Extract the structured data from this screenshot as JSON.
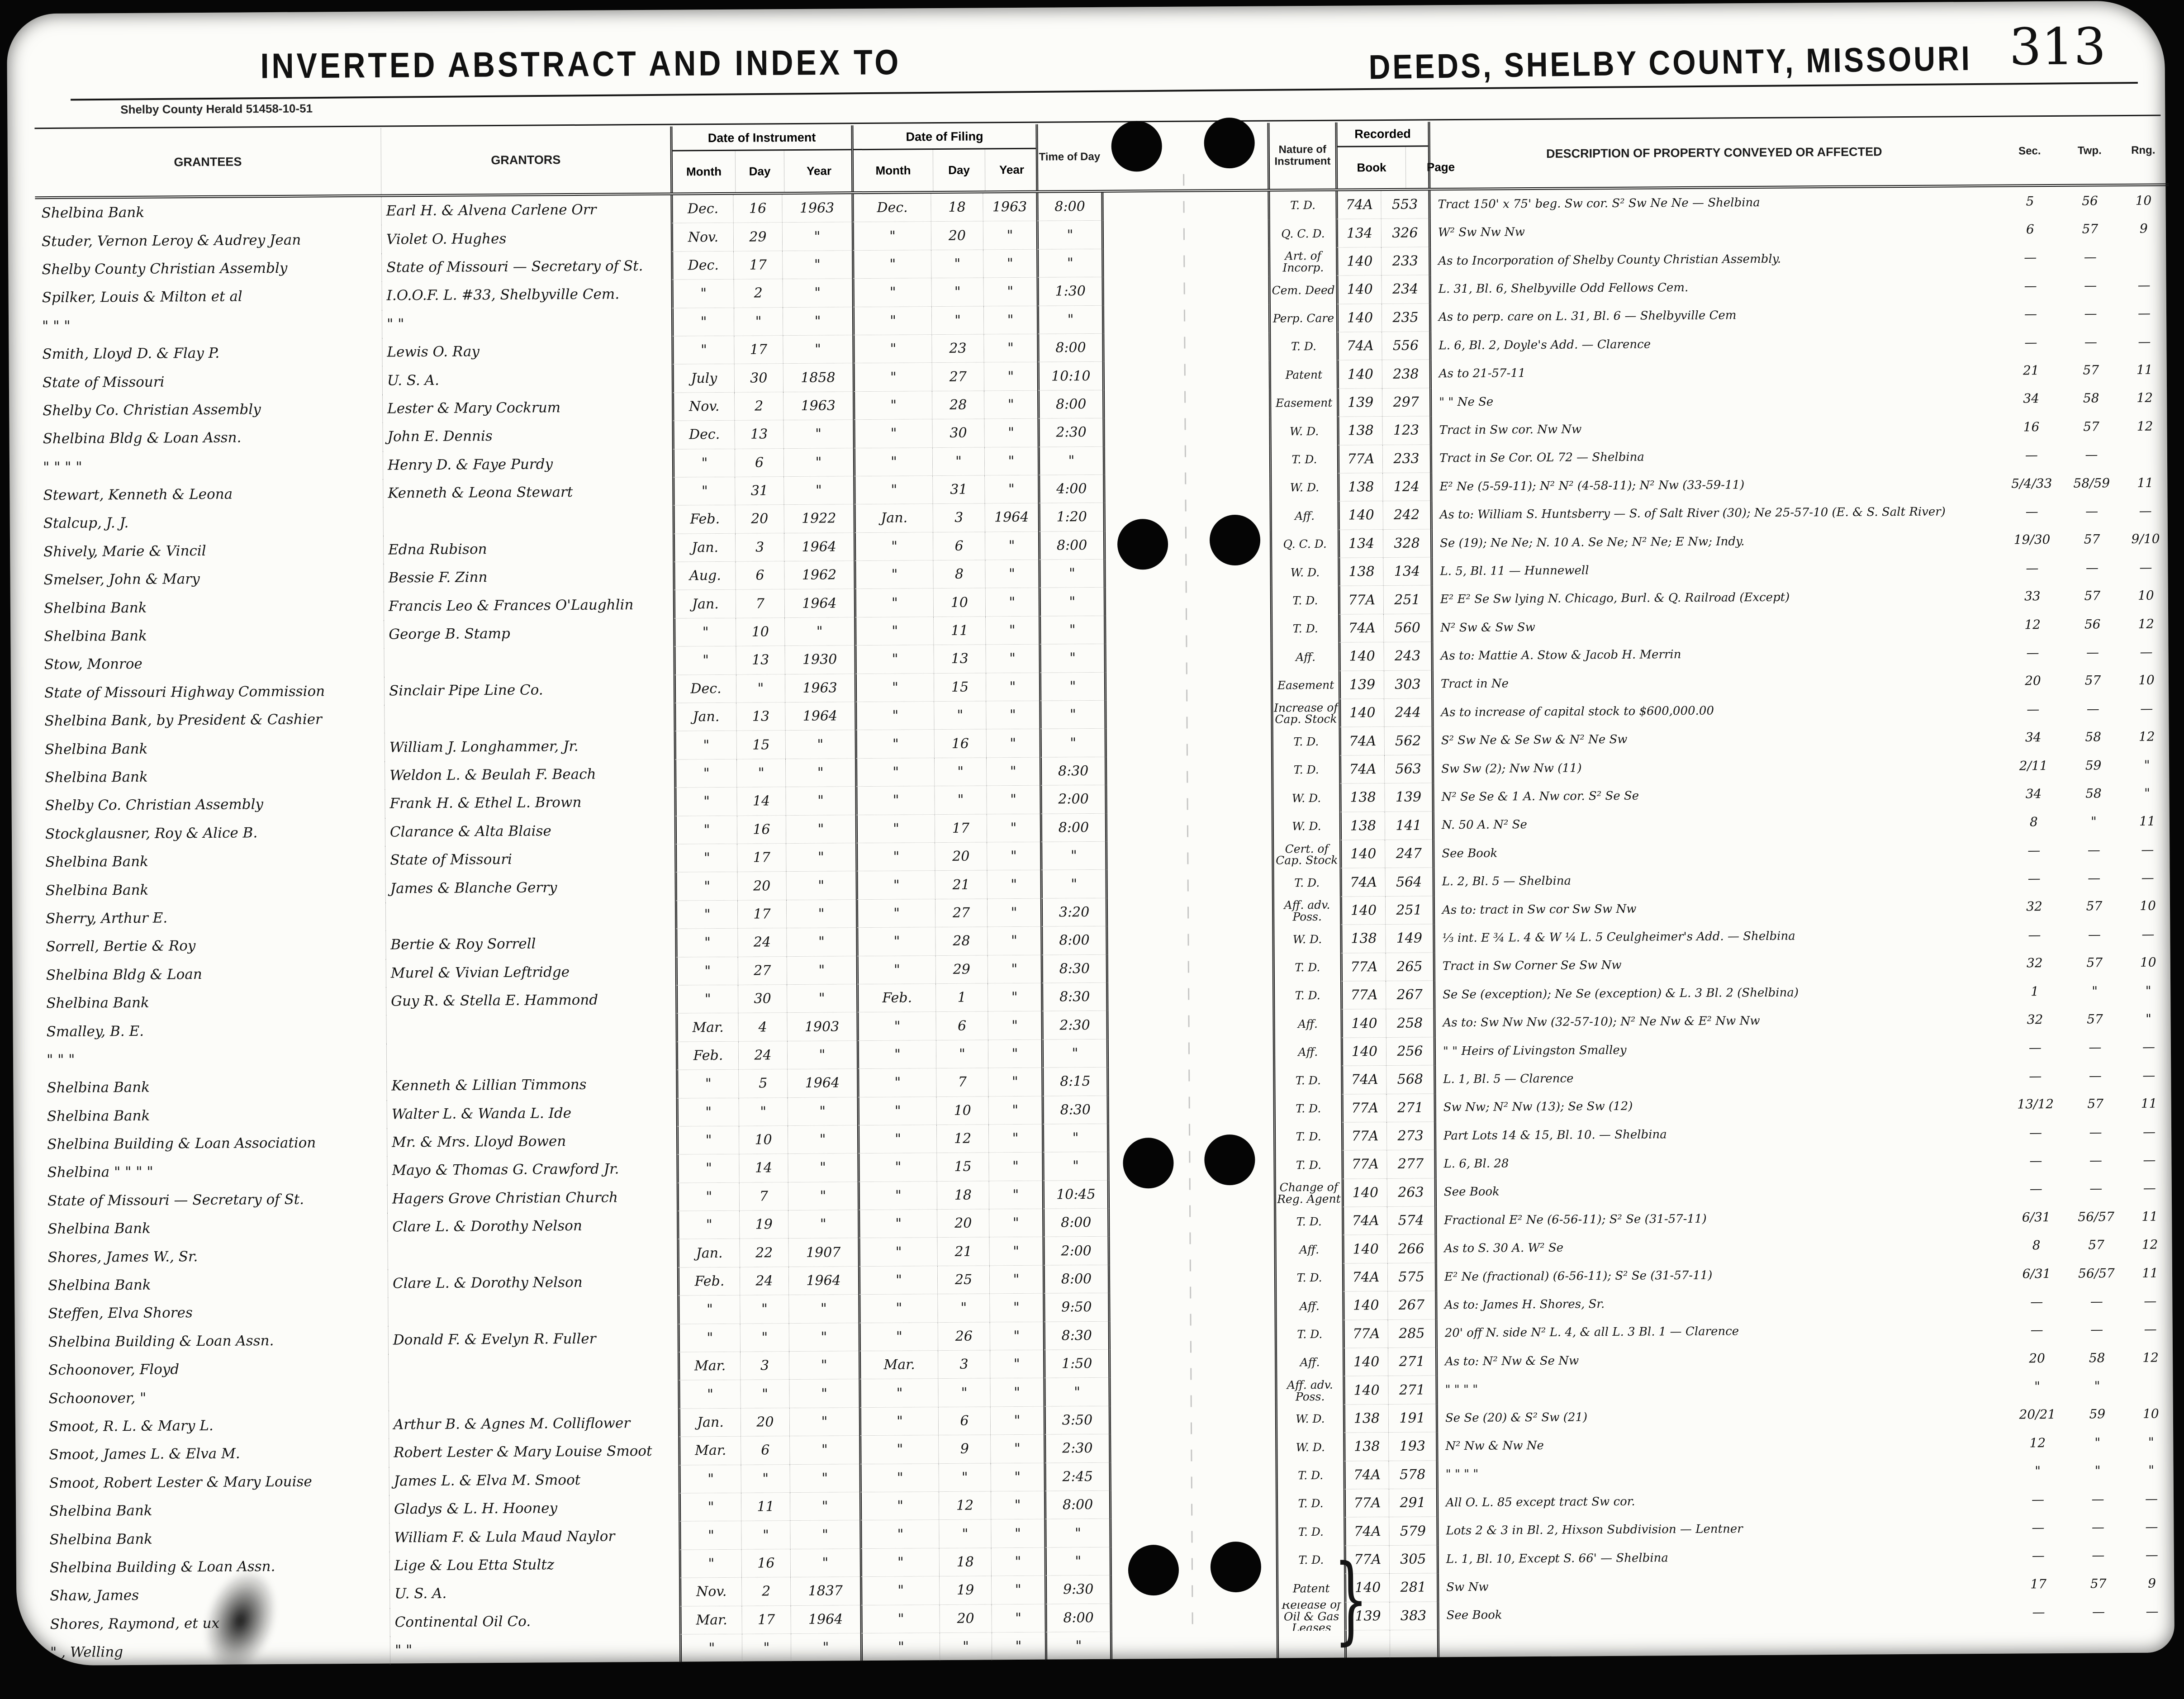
{
  "page": {
    "left_title": "INVERTED ABSTRACT AND INDEX TO",
    "right_title": "DEEDS, SHELBY COUNTY, MISSOURI",
    "page_number": "313",
    "imprint": "Shelby County Herald   51458-10-51"
  },
  "headers": {
    "grantees": "GRANTEES",
    "grantors": "GRANTORS",
    "date_of_instrument": "Date of Instrument",
    "date_of_filing": "Date of Filing",
    "month": "Month",
    "day": "Day",
    "year": "Year",
    "time_of_day": "Time of Day",
    "nature": "Nature of Instrument",
    "recorded": "Recorded",
    "book": "Book",
    "page": "Page",
    "description": "DESCRIPTION OF PROPERTY CONVEYED OR AFFECTED",
    "sec": "Sec.",
    "twp": "Twp.",
    "rng": "Rng."
  },
  "rows": [
    {
      "g": "Shelbina Bank",
      "r": "Earl H. & Alvena Carlene Orr",
      "m1": "Dec.",
      "d1": "16",
      "y1": "1963",
      "m2": "Dec.",
      "d2": "18",
      "y2": "1963",
      "t": "8:00",
      "n": "T. D.",
      "b": "74A",
      "p": "553",
      "de": "Tract 150' x 75' beg. Sw cor. S² Sw Ne Ne — Shelbina",
      "s": "5",
      "tp": "56",
      "rg": "10"
    },
    {
      "g": "Studer, Vernon Leroy & Audrey Jean",
      "r": "Violet O. Hughes",
      "m1": "Nov.",
      "d1": "29",
      "y1": "\"",
      "m2": "\"",
      "d2": "20",
      "y2": "\"",
      "t": "\"",
      "n": "Q. C. D.",
      "b": "134",
      "p": "326",
      "de": "W² Sw Nw Nw",
      "s": "6",
      "tp": "57",
      "rg": "9"
    },
    {
      "g": "Shelby County Christian Assembly",
      "r": "State of Missouri — Secretary of St.",
      "m1": "Dec.",
      "d1": "17",
      "y1": "\"",
      "m2": "\"",
      "d2": "\"",
      "y2": "\"",
      "t": "\"",
      "n": "Art. of Incorp.",
      "b": "140",
      "p": "233",
      "de": "As to Incorporation of Shelby County Christian Assembly.",
      "s": "—",
      "tp": "—",
      "rg": ""
    },
    {
      "g": "Spilker, Louis & Milton et al",
      "r": "I.O.O.F. L. #33, Shelbyville Cem.",
      "m1": "\"",
      "d1": "2",
      "y1": "\"",
      "m2": "\"",
      "d2": "\"",
      "y2": "\"",
      "t": "1:30",
      "n": "Cem. Deed",
      "b": "140",
      "p": "234",
      "de": "L. 31, Bl. 6, Shelbyville Odd Fellows Cem.",
      "s": "—",
      "tp": "—",
      "rg": "—"
    },
    {
      "g": "\"      \"      \"",
      "r": "\"      \"",
      "m1": "\"",
      "d1": "\"",
      "y1": "\"",
      "m2": "\"",
      "d2": "\"",
      "y2": "\"",
      "t": "\"",
      "n": "Perp. Care",
      "b": "140",
      "p": "235",
      "de": "As to perp. care on L. 31, Bl. 6 — Shelbyville Cem",
      "s": "—",
      "tp": "—",
      "rg": "—"
    },
    {
      "g": "Smith, Lloyd D. & Flay P.",
      "r": "Lewis O. Ray",
      "m1": "\"",
      "d1": "17",
      "y1": "\"",
      "m2": "\"",
      "d2": "23",
      "y2": "\"",
      "t": "8:00",
      "n": "T. D.",
      "b": "74A",
      "p": "556",
      "de": "L. 6, Bl. 2, Doyle's Add. — Clarence",
      "s": "—",
      "tp": "—",
      "rg": "—"
    },
    {
      "g": "State of Missouri",
      "r": "U. S. A.",
      "m1": "July",
      "d1": "30",
      "y1": "1858",
      "m2": "\"",
      "d2": "27",
      "y2": "\"",
      "t": "10:10",
      "n": "Patent",
      "b": "140",
      "p": "238",
      "de": "As to 21-57-11",
      "s": "21",
      "tp": "57",
      "rg": "11"
    },
    {
      "g": "Shelby Co. Christian Assembly",
      "r": "Lester & Mary Cockrum",
      "m1": "Nov.",
      "d1": "2",
      "y1": "1963",
      "m2": "\"",
      "d2": "28",
      "y2": "\"",
      "t": "8:00",
      "n": "Easement",
      "b": "139",
      "p": "297",
      "de": "\"   \"   Ne Se",
      "s": "34",
      "tp": "58",
      "rg": "12"
    },
    {
      "g": "Shelbina Bldg & Loan Assn.",
      "r": "John E. Dennis",
      "m1": "Dec.",
      "d1": "13",
      "y1": "\"",
      "m2": "\"",
      "d2": "30",
      "y2": "\"",
      "t": "2:30",
      "n": "W. D.",
      "b": "138",
      "p": "123",
      "de": "Tract in Sw cor. Nw Nw",
      "s": "16",
      "tp": "57",
      "rg": "12"
    },
    {
      "g": "\"      \"      \"      \"",
      "r": "Henry D. & Faye Purdy",
      "m1": "\"",
      "d1": "6",
      "y1": "\"",
      "m2": "\"",
      "d2": "\"",
      "y2": "\"",
      "t": "\"",
      "n": "T. D.",
      "b": "77A",
      "p": "233",
      "de": "Tract in Se Cor. OL 72 —   Shelbina",
      "s": "—",
      "tp": "—",
      "rg": ""
    },
    {
      "g": "Stewart, Kenneth & Leona",
      "r": "Kenneth & Leona Stewart",
      "m1": "\"",
      "d1": "31",
      "y1": "\"",
      "m2": "\"",
      "d2": "31",
      "y2": "\"",
      "t": "4:00",
      "n": "W. D.",
      "b": "138",
      "p": "124",
      "de": "E² Ne (5-59-11); N² N² (4-58-11); N² Nw (33-59-11)",
      "s": "5/4/33",
      "tp": "58/59",
      "rg": "11"
    },
    {
      "g": "Stalcup, J. J.",
      "r": "",
      "m1": "Feb.",
      "d1": "20",
      "y1": "1922",
      "m2": "Jan.",
      "d2": "3",
      "y2": "1964",
      "t": "1:20",
      "n": "Aff.",
      "b": "140",
      "p": "242",
      "de": "As to: William S. Huntsberry — S. of Salt River (30); Ne 25-57-10 (E. & S. Salt River)",
      "s": "—",
      "tp": "—",
      "rg": "—"
    },
    {
      "g": "Shively, Marie & Vincil",
      "r": "Edna Rubison",
      "m1": "Jan.",
      "d1": "3",
      "y1": "1964",
      "m2": "\"",
      "d2": "6",
      "y2": "\"",
      "t": "8:00",
      "n": "Q. C. D.",
      "b": "134",
      "p": "328",
      "de": "Se (19); Ne Ne; N. 10 A. Se Ne; N² Ne; E Nw; Indy.",
      "s": "19/30",
      "tp": "57",
      "rg": "9/10"
    },
    {
      "g": "Smelser, John & Mary",
      "r": "Bessie F. Zinn",
      "m1": "Aug.",
      "d1": "6",
      "y1": "1962",
      "m2": "\"",
      "d2": "8",
      "y2": "\"",
      "t": "\"",
      "n": "W. D.",
      "b": "138",
      "p": "134",
      "de": "L. 5, Bl. 11 —   Hunnewell",
      "s": "—",
      "tp": "—",
      "rg": "—"
    },
    {
      "g": "Shelbina Bank",
      "r": "Francis Leo & Frances O'Laughlin",
      "m1": "Jan.",
      "d1": "7",
      "y1": "1964",
      "m2": "\"",
      "d2": "10",
      "y2": "\"",
      "t": "\"",
      "n": "T. D.",
      "b": "77A",
      "p": "251",
      "de": "E² E² Se Sw lying N. Chicago, Burl. & Q. Railroad (Except)",
      "s": "33",
      "tp": "57",
      "rg": "10"
    },
    {
      "g": "Shelbina Bank",
      "r": "George B. Stamp",
      "m1": "\"",
      "d1": "10",
      "y1": "\"",
      "m2": "\"",
      "d2": "11",
      "y2": "\"",
      "t": "\"",
      "n": "T. D.",
      "b": "74A",
      "p": "560",
      "de": "N² Sw & Sw Sw",
      "s": "12",
      "tp": "56",
      "rg": "12"
    },
    {
      "g": "Stow, Monroe",
      "r": "",
      "m1": "\"",
      "d1": "13",
      "y1": "1930",
      "m2": "\"",
      "d2": "13",
      "y2": "\"",
      "t": "\"",
      "n": "Aff.",
      "b": "140",
      "p": "243",
      "de": "As to: Mattie A. Stow & Jacob H. Merrin",
      "s": "—",
      "tp": "—",
      "rg": "—"
    },
    {
      "g": "State of Missouri Highway Commission",
      "r": "Sinclair Pipe Line Co.",
      "m1": "Dec.",
      "d1": "\"",
      "y1": "1963",
      "m2": "\"",
      "d2": "15",
      "y2": "\"",
      "t": "\"",
      "n": "Easement",
      "b": "139",
      "p": "303",
      "de": "Tract in Ne",
      "s": "20",
      "tp": "57",
      "rg": "10"
    },
    {
      "g": "Shelbina Bank, by President & Cashier",
      "r": "",
      "m1": "Jan.",
      "d1": "13",
      "y1": "1964",
      "m2": "\"",
      "d2": "\"",
      "y2": "\"",
      "t": "\"",
      "n": "Increase of Cap. Stock",
      "b": "140",
      "p": "244",
      "de": "As to increase of capital stock to $600,000.00",
      "s": "—",
      "tp": "—",
      "rg": "—"
    },
    {
      "g": "Shelbina Bank",
      "r": "William J. Longhammer, Jr.",
      "m1": "\"",
      "d1": "15",
      "y1": "\"",
      "m2": "\"",
      "d2": "16",
      "y2": "\"",
      "t": "\"",
      "n": "T. D.",
      "b": "74A",
      "p": "562",
      "de": "S² Sw Ne & Se Sw & N² Ne Sw",
      "s": "34",
      "tp": "58",
      "rg": "12"
    },
    {
      "g": "Shelbina Bank",
      "r": "Weldon L. & Beulah F. Beach",
      "m1": "\"",
      "d1": "\"",
      "y1": "\"",
      "m2": "\"",
      "d2": "\"",
      "y2": "\"",
      "t": "8:30",
      "n": "T. D.",
      "b": "74A",
      "p": "563",
      "de": "Sw Sw (2); Nw Nw (11)",
      "s": "2/11",
      "tp": "59",
      "rg": "\""
    },
    {
      "g": "Shelby Co. Christian Assembly",
      "r": "Frank H. & Ethel L. Brown",
      "m1": "\"",
      "d1": "14",
      "y1": "\"",
      "m2": "\"",
      "d2": "\"",
      "y2": "\"",
      "t": "2:00",
      "n": "W. D.",
      "b": "138",
      "p": "139",
      "de": "N² Se Se & 1 A. Nw cor. S² Se Se",
      "s": "34",
      "tp": "58",
      "rg": "\""
    },
    {
      "g": "Stockglausner, Roy & Alice B.",
      "r": "Clarance & Alta Blaise",
      "m1": "\"",
      "d1": "16",
      "y1": "\"",
      "m2": "\"",
      "d2": "17",
      "y2": "\"",
      "t": "8:00",
      "n": "W. D.",
      "b": "138",
      "p": "141",
      "de": "N. 50 A. N² Se",
      "s": "8",
      "tp": "\"",
      "rg": "11"
    },
    {
      "g": "Shelbina Bank",
      "r": "State of Missouri",
      "m1": "\"",
      "d1": "17",
      "y1": "\"",
      "m2": "\"",
      "d2": "20",
      "y2": "\"",
      "t": "\"",
      "n": "Cert. of Cap. Stock",
      "b": "140",
      "p": "247",
      "de": "See Book",
      "s": "—",
      "tp": "—",
      "rg": "—"
    },
    {
      "g": "Shelbina Bank",
      "r": "James & Blanche Gerry",
      "m1": "\"",
      "d1": "20",
      "y1": "\"",
      "m2": "\"",
      "d2": "21",
      "y2": "\"",
      "t": "\"",
      "n": "T. D.",
      "b": "74A",
      "p": "564",
      "de": "L. 2, Bl. 5 —   Shelbina",
      "s": "—",
      "tp": "—",
      "rg": "—"
    },
    {
      "g": "Sherry, Arthur E.",
      "r": "",
      "m1": "\"",
      "d1": "17",
      "y1": "\"",
      "m2": "\"",
      "d2": "27",
      "y2": "\"",
      "t": "3:20",
      "n": "Aff. adv. Poss.",
      "b": "140",
      "p": "251",
      "de": "As to: tract in Sw cor Sw Sw Nw",
      "s": "32",
      "tp": "57",
      "rg": "10"
    },
    {
      "g": "Sorrell, Bertie & Roy",
      "r": "Bertie & Roy Sorrell",
      "m1": "\"",
      "d1": "24",
      "y1": "\"",
      "m2": "\"",
      "d2": "28",
      "y2": "\"",
      "t": "8:00",
      "n": "W. D.",
      "b": "138",
      "p": "149",
      "de": "⅓ int. E ¾ L. 4 & W ¼ L. 5 Ceulgheimer's Add. — Shelbina",
      "s": "—",
      "tp": "—",
      "rg": "—"
    },
    {
      "g": "Shelbina Bldg & Loan",
      "r": "Murel & Vivian Leftridge",
      "m1": "\"",
      "d1": "27",
      "y1": "\"",
      "m2": "\"",
      "d2": "29",
      "y2": "\"",
      "t": "8:30",
      "n": "T. D.",
      "b": "77A",
      "p": "265",
      "de": "Tract in Sw Corner Se Sw Nw",
      "s": "32",
      "tp": "57",
      "rg": "10"
    },
    {
      "g": "Shelbina Bank",
      "r": "Guy R. & Stella E. Hammond",
      "m1": "\"",
      "d1": "30",
      "y1": "\"",
      "m2": "Feb.",
      "d2": "1",
      "y2": "\"",
      "t": "8:30",
      "n": "T. D.",
      "b": "77A",
      "p": "267",
      "de": "Se Se (exception); Ne Se (exception) & L. 3 Bl. 2 (Shelbina)",
      "s": "1",
      "tp": "\"",
      "rg": "\""
    },
    {
      "g": "Smalley, B. E.",
      "r": "",
      "m1": "Mar.",
      "d1": "4",
      "y1": "1903",
      "m2": "\"",
      "d2": "6",
      "y2": "\"",
      "t": "2:30",
      "n": "Aff.",
      "b": "140",
      "p": "258",
      "de": "As to: Sw Nw Nw (32-57-10); N² Ne Nw & E² Nw Nw",
      "s": "32",
      "tp": "57",
      "rg": "\""
    },
    {
      "g": "\"      \"      \"",
      "r": "",
      "m1": "Feb.",
      "d1": "24",
      "y1": "\"",
      "m2": "\"",
      "d2": "\"",
      "y2": "\"",
      "t": "\"",
      "n": "Aff.",
      "b": "140",
      "p": "256",
      "de": "\"   \"   Heirs of Livingston Smalley",
      "s": "—",
      "tp": "—",
      "rg": "—"
    },
    {
      "g": "Shelbina Bank",
      "r": "Kenneth & Lillian Timmons",
      "m1": "\"",
      "d1": "5",
      "y1": "1964",
      "m2": "\"",
      "d2": "7",
      "y2": "\"",
      "t": "8:15",
      "n": "T. D.",
      "b": "74A",
      "p": "568",
      "de": "L. 1, Bl. 5  —   Clarence",
      "s": "—",
      "tp": "—",
      "rg": "—"
    },
    {
      "g": "Shelbina Bank",
      "r": "Walter L. & Wanda L. Ide",
      "m1": "\"",
      "d1": "\"",
      "y1": "\"",
      "m2": "\"",
      "d2": "10",
      "y2": "\"",
      "t": "8:30",
      "n": "T. D.",
      "b": "77A",
      "p": "271",
      "de": "Sw Nw; N² Nw (13); Se Sw (12)",
      "s": "13/12",
      "tp": "57",
      "rg": "11"
    },
    {
      "g": "Shelbina Building & Loan Association",
      "r": "Mr. & Mrs. Lloyd Bowen",
      "m1": "\"",
      "d1": "10",
      "y1": "\"",
      "m2": "\"",
      "d2": "12",
      "y2": "\"",
      "t": "\"",
      "n": "T. D.",
      "b": "77A",
      "p": "273",
      "de": "Part Lots 14 & 15, Bl. 10. —   Shelbina",
      "s": "—",
      "tp": "—",
      "rg": "—"
    },
    {
      "g": "Shelbina   \"   \"   \"   \"",
      "r": "Mayo & Thomas G. Crawford Jr.",
      "m1": "\"",
      "d1": "14",
      "y1": "\"",
      "m2": "\"",
      "d2": "15",
      "y2": "\"",
      "t": "\"",
      "n": "T. D.",
      "b": "77A",
      "p": "277",
      "de": "L. 6, Bl. 28",
      "s": "—",
      "tp": "—",
      "rg": "—"
    },
    {
      "g": "State of Missouri — Secretary of St.",
      "r": "Hagers Grove Christian Church",
      "m1": "\"",
      "d1": "7",
      "y1": "\"",
      "m2": "\"",
      "d2": "18",
      "y2": "\"",
      "t": "10:45",
      "n": "Change of Reg. Agent",
      "b": "140",
      "p": "263",
      "de": "See Book",
      "s": "—",
      "tp": "—",
      "rg": "—"
    },
    {
      "g": "Shelbina Bank",
      "r": "Clare L. & Dorothy Nelson",
      "m1": "\"",
      "d1": "19",
      "y1": "\"",
      "m2": "\"",
      "d2": "20",
      "y2": "\"",
      "t": "8:00",
      "n": "T. D.",
      "b": "74A",
      "p": "574",
      "de": "Fractional E² Ne (6-56-11); S² Se (31-57-11)",
      "s": "6/31",
      "tp": "56/57",
      "rg": "11"
    },
    {
      "g": "Shores, James W., Sr.",
      "r": "",
      "m1": "Jan.",
      "d1": "22",
      "y1": "1907",
      "m2": "\"",
      "d2": "21",
      "y2": "\"",
      "t": "2:00",
      "n": "Aff.",
      "b": "140",
      "p": "266",
      "de": "As to S. 30 A. W² Se",
      "s": "8",
      "tp": "57",
      "rg": "12"
    },
    {
      "g": "Shelbina Bank",
      "r": "Clare L. & Dorothy Nelson",
      "m1": "Feb.",
      "d1": "24",
      "y1": "1964",
      "m2": "\"",
      "d2": "25",
      "y2": "\"",
      "t": "8:00",
      "n": "T. D.",
      "b": "74A",
      "p": "575",
      "de": "E² Ne (fractional) (6-56-11); S² Se (31-57-11)",
      "s": "6/31",
      "tp": "56/57",
      "rg": "11"
    },
    {
      "g": "Steffen, Elva Shores",
      "r": "",
      "m1": "\"",
      "d1": "\"",
      "y1": "\"",
      "m2": "\"",
      "d2": "\"",
      "y2": "\"",
      "t": "9:50",
      "n": "Aff.",
      "b": "140",
      "p": "267",
      "de": "As to: James H. Shores, Sr.",
      "s": "—",
      "tp": "—",
      "rg": "—"
    },
    {
      "g": "Shelbina Building & Loan Assn.",
      "r": "Donald F. & Evelyn R. Fuller",
      "m1": "\"",
      "d1": "\"",
      "y1": "\"",
      "m2": "\"",
      "d2": "26",
      "y2": "\"",
      "t": "8:30",
      "n": "T. D.",
      "b": "77A",
      "p": "285",
      "de": "20' off N. side N² L. 4, & all L. 3 Bl. 1 — Clarence",
      "s": "—",
      "tp": "—",
      "rg": "—"
    },
    {
      "g": "Schoonover, Floyd",
      "r": "",
      "m1": "Mar.",
      "d1": "3",
      "y1": "\"",
      "m2": "Mar.",
      "d2": "3",
      "y2": "\"",
      "t": "1:50",
      "n": "Aff.",
      "b": "140",
      "p": "271",
      "de": "As to: N² Nw & Se Nw",
      "s": "20",
      "tp": "58",
      "rg": "12"
    },
    {
      "g": "Schoonover,   \"",
      "r": "",
      "m1": "\"",
      "d1": "\"",
      "y1": "\"",
      "m2": "\"",
      "d2": "\"",
      "y2": "\"",
      "t": "\"",
      "n": "Aff. adv. Poss.",
      "b": "140",
      "p": "271",
      "de": "\"   \"   \"   \"",
      "s": "\"",
      "tp": "\"",
      "rg": ""
    },
    {
      "g": "Smoot, R. L. & Mary L.",
      "r": "Arthur B. & Agnes M. Colliflower",
      "m1": "Jan.",
      "d1": "20",
      "y1": "\"",
      "m2": "\"",
      "d2": "6",
      "y2": "\"",
      "t": "3:50",
      "n": "W. D.",
      "b": "138",
      "p": "191",
      "de": "Se Se (20) & S² Sw (21)",
      "s": "20/21",
      "tp": "59",
      "rg": "10"
    },
    {
      "g": "Smoot, James L. & Elva M.",
      "r": "Robert Lester & Mary Louise Smoot",
      "m1": "Mar.",
      "d1": "6",
      "y1": "\"",
      "m2": "\"",
      "d2": "9",
      "y2": "\"",
      "t": "2:30",
      "n": "W. D.",
      "b": "138",
      "p": "193",
      "de": "N² Nw & Nw Ne",
      "s": "12",
      "tp": "\"",
      "rg": "\""
    },
    {
      "g": "Smoot, Robert Lester & Mary Louise",
      "r": "James L. & Elva M. Smoot",
      "m1": "\"",
      "d1": "\"",
      "y1": "\"",
      "m2": "\"",
      "d2": "\"",
      "y2": "\"",
      "t": "2:45",
      "n": "T. D.",
      "b": "74A",
      "p": "578",
      "de": "\"   \"   \"   \"",
      "s": "\"",
      "tp": "\"",
      "rg": "\""
    },
    {
      "g": "Shelbina Bank",
      "r": "Gladys & L. H. Hooney",
      "m1": "\"",
      "d1": "11",
      "y1": "\"",
      "m2": "\"",
      "d2": "12",
      "y2": "\"",
      "t": "8:00",
      "n": "T. D.",
      "b": "77A",
      "p": "291",
      "de": "All O. L. 85 except tract Sw cor.",
      "s": "—",
      "tp": "—",
      "rg": "—"
    },
    {
      "g": "Shelbina Bank",
      "r": "William F. & Lula Maud Naylor",
      "m1": "\"",
      "d1": "\"",
      "y1": "\"",
      "m2": "\"",
      "d2": "\"",
      "y2": "\"",
      "t": "\"",
      "n": "T. D.",
      "b": "74A",
      "p": "579",
      "de": "Lots 2 & 3 in Bl. 2, Hixson Subdivision — Lentner",
      "s": "—",
      "tp": "—",
      "rg": "—"
    },
    {
      "g": "Shelbina Building & Loan Assn.",
      "r": "Lige & Lou Etta Stultz",
      "m1": "\"",
      "d1": "16",
      "y1": "\"",
      "m2": "\"",
      "d2": "18",
      "y2": "\"",
      "t": "\"",
      "n": "T. D.",
      "b": "77A",
      "p": "305",
      "de": "L. 1, Bl. 10, Except S. 66'          — Shelbina",
      "s": "—",
      "tp": "—",
      "rg": "—"
    },
    {
      "g": "Shaw, James",
      "r": "U. S. A.",
      "m1": "Nov.",
      "d1": "2",
      "y1": "1837",
      "m2": "\"",
      "d2": "19",
      "y2": "\"",
      "t": "9:30",
      "n": "Patent",
      "b": "140",
      "p": "281",
      "de": "Sw Nw",
      "s": "17",
      "tp": "57",
      "rg": "9"
    },
    {
      "g": "Shores, Raymond, et ux",
      "r": "Continental Oil Co.",
      "m1": "Mar.",
      "d1": "17",
      "y1": "1964",
      "m2": "\"",
      "d2": "20",
      "y2": "\"",
      "t": "8:00",
      "n": "Release of Oil & Gas Leases",
      "b": "139",
      "p": "383",
      "de": "See Book",
      "s": "—",
      "tp": "—",
      "rg": "—"
    },
    {
      "g": "\"    , Welling",
      "r": "\"      \"",
      "m1": "\"",
      "d1": "\"",
      "y1": "\"",
      "m2": "\"",
      "d2": "\"",
      "y2": "\"",
      "t": "\"",
      "n": "",
      "b": "",
      "p": "",
      "de": "",
      "s": "",
      "tp": "",
      "rg": ""
    }
  ]
}
